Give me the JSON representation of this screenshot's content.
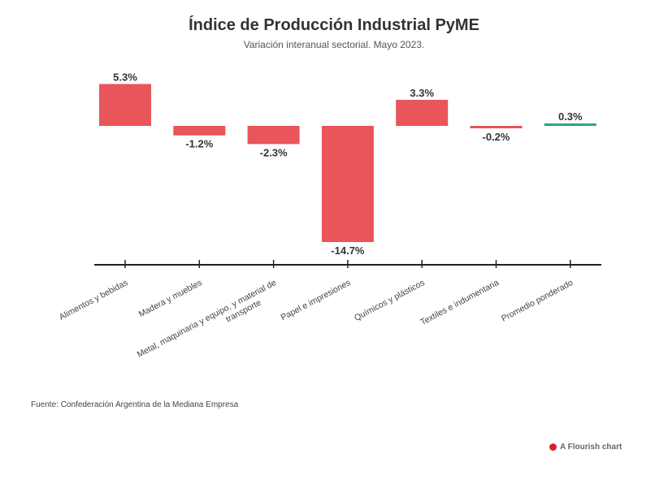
{
  "chart_data": {
    "type": "bar",
    "title": "Índice de Producción Industrial PyME",
    "subtitle": "Variación interanual sectorial. Mayo 2023.",
    "categories": [
      "Alimentos y bebidas",
      "Madera y muebles",
      "Metal, maquinaria y equipo, y material de transporte",
      "Papel e impresiones",
      "Químicos y plásticos",
      "Textiles e indumentaria",
      "Promedio ponderado"
    ],
    "category_lines": [
      [
        "Alimentos y bebidas"
      ],
      [
        "Madera y muebles"
      ],
      [
        "Metal, maquinaria y equipo, y material de",
        "transporte"
      ],
      [
        "Papel e impresiones"
      ],
      [
        "Químicos y plásticos"
      ],
      [
        "Textiles e indumentaria"
      ],
      [
        "Promedio ponderado"
      ]
    ],
    "values": [
      5.3,
      -1.2,
      -2.3,
      -14.7,
      3.3,
      -0.2,
      0.3
    ],
    "value_labels": [
      "5.3%",
      "-1.2%",
      "-2.3%",
      "-14.7%",
      "3.3%",
      "-0.2%",
      "0.3%"
    ],
    "colors": [
      "#e8555a",
      "#e8555a",
      "#e8555a",
      "#e8555a",
      "#e8555a",
      "#e8555a",
      "#2fa67a"
    ],
    "ylim": [
      -16,
      6
    ],
    "grid": false,
    "legend": "none"
  },
  "source": "Fuente: Confederación Argentina de la Mediana Empresa",
  "credit": "A Flourish chart"
}
